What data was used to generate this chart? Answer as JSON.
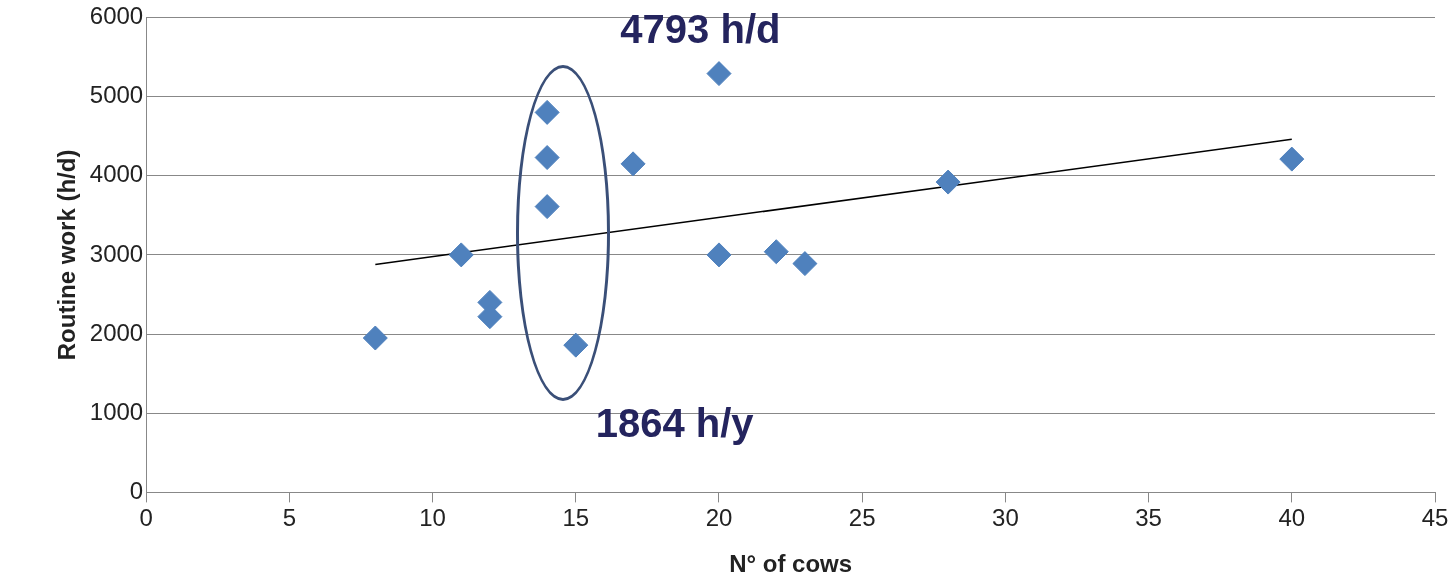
{
  "chart_data": {
    "type": "scatter",
    "xlabel": "N° of cows",
    "ylabel": "Routine work (h/d)",
    "xlim": [
      0,
      45
    ],
    "xticks": [
      0,
      5,
      10,
      15,
      20,
      25,
      30,
      35,
      40,
      45
    ],
    "ylim": [
      0,
      6000
    ],
    "yticks": [
      0,
      1000,
      2000,
      3000,
      4000,
      5000,
      6000
    ],
    "grid": "y",
    "series": [
      {
        "marker": "diamond",
        "color": "#4f81bd",
        "x": [
          8,
          11,
          12,
          12,
          14,
          14,
          14,
          15,
          17,
          20,
          20,
          22,
          23,
          28,
          40
        ],
        "values": [
          1950,
          3000,
          2400,
          2220,
          4800,
          4230,
          3610,
          1860,
          4150,
          5290,
          3000,
          3040,
          2890,
          3920,
          4210
        ]
      },
      {
        "type": "line",
        "marker": "none",
        "color": "#000000",
        "x": [
          8,
          40
        ],
        "values": [
          2880,
          4460
        ]
      }
    ],
    "annotations": [
      "4793 h/d",
      "1864 h/y"
    ]
  }
}
